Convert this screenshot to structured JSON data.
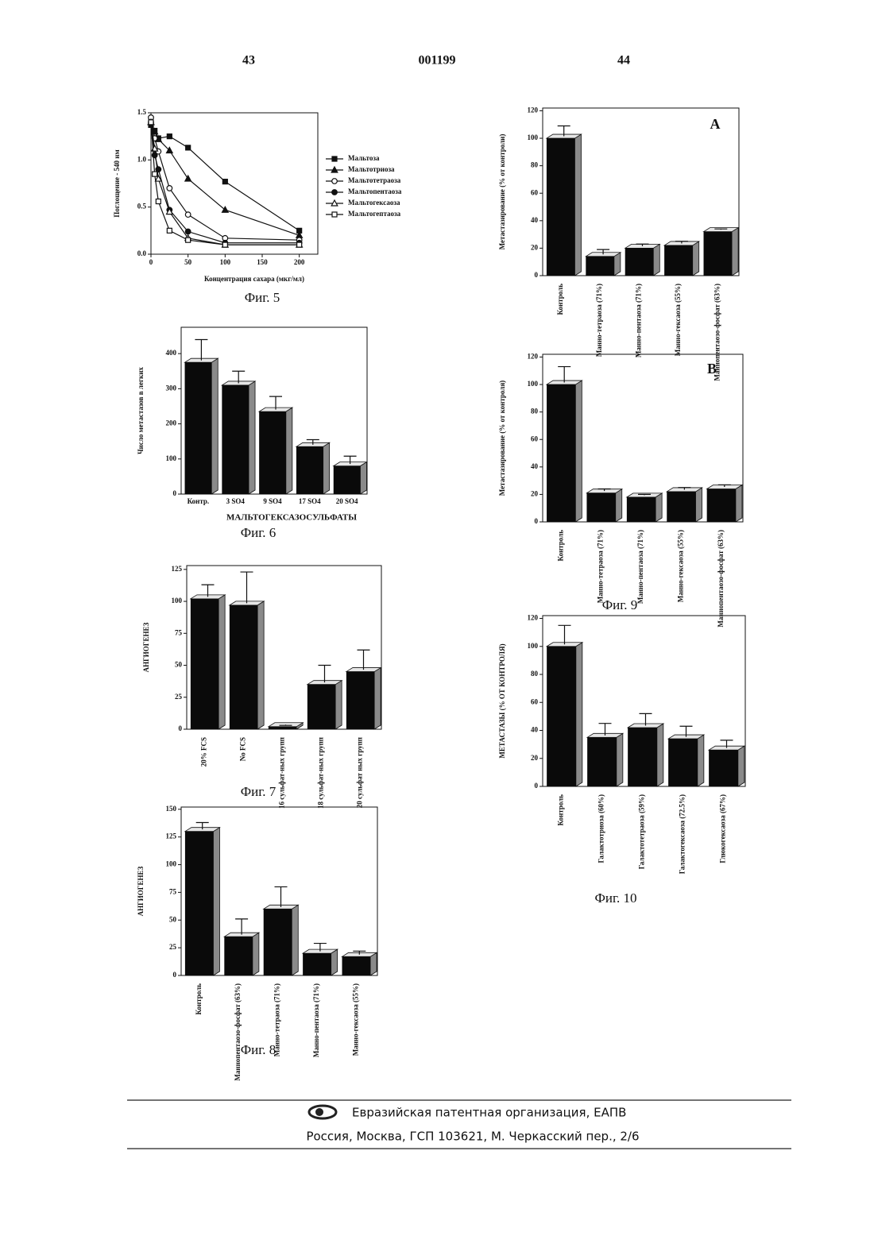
{
  "header": {
    "left": "43",
    "center": "001199",
    "right": "44"
  },
  "chart_data": [
    {
      "type": "line",
      "caption": "Фиг. 5",
      "xlabel": "Концентрация сахара (мкг/мл)",
      "ylabel": "Поглощение - 540 нм",
      "x": [
        0,
        5,
        10,
        25,
        50,
        100,
        200
      ],
      "xlim": [
        0,
        225
      ],
      "xticks": [
        0,
        50,
        100,
        150,
        200
      ],
      "ylim": [
        0,
        1.5
      ],
      "yticks": [
        {
          "value": 0,
          "label": "0.0"
        },
        0.5,
        {
          "value": 1,
          "label": "1.0"
        },
        1.5
      ],
      "series": [
        {
          "name": "Мальтоза",
          "color": "#111111",
          "marker": "square-filled",
          "values": [
            1.37,
            1.31,
            1.23,
            1.25,
            1.13,
            0.77,
            0.25
          ]
        },
        {
          "name": "Мальтотриоза",
          "color": "#111111",
          "marker": "triangle-filled",
          "values": [
            1.4,
            1.3,
            1.22,
            1.1,
            0.8,
            0.47,
            0.2
          ]
        },
        {
          "name": "Мальтотетраоза",
          "color": "#111111",
          "marker": "circle-open",
          "values": [
            1.45,
            1.23,
            1.09,
            0.7,
            0.42,
            0.17,
            0.15
          ]
        },
        {
          "name": "Мальтопентаоза",
          "color": "#111111",
          "marker": "circle-filled",
          "values": [
            1.4,
            1.05,
            0.9,
            0.47,
            0.24,
            0.12,
            0.12
          ]
        },
        {
          "name": "Мальтогексаоза",
          "color": "#111111",
          "marker": "triangle-open",
          "values": [
            1.4,
            1.12,
            0.8,
            0.45,
            0.17,
            0.1,
            0.1
          ]
        },
        {
          "name": "Мальтогептаоза",
          "color": "#111111",
          "marker": "square-open",
          "values": [
            1.4,
            0.85,
            0.56,
            0.25,
            0.15,
            0.1,
            0.1
          ]
        }
      ]
    },
    {
      "type": "bar",
      "caption": "Фиг. 6",
      "xlabel": "МАЛЬТОГЕКСАЗОСУЛЬФАТЫ",
      "ylabel": "Число метастазов в легких",
      "categories": [
        "Контр.",
        "3 SO4",
        "9 SO4",
        "17 SO4",
        "20 SO4"
      ],
      "values": [
        375,
        310,
        235,
        135,
        80
      ],
      "errors": [
        65,
        40,
        43,
        20,
        28
      ],
      "ylim": [
        0,
        475
      ],
      "yticks": [
        0,
        100,
        200,
        300,
        400
      ],
      "color": "#0a0a0a"
    },
    {
      "type": "bar",
      "caption": "Фиг. 7",
      "ylabel": "АНГИОГЕНЕЗ",
      "categories": [
        "20% FCS",
        "No FCS",
        "16 сульфат-ных групп",
        "18 сульфат-ных групп",
        "20 сульфат ных групп"
      ],
      "values": [
        102,
        97,
        2,
        35,
        45
      ],
      "errors": [
        11,
        26,
        1,
        15,
        17
      ],
      "ylim": [
        0,
        128
      ],
      "yticks": [
        0,
        25,
        50,
        75,
        100,
        125
      ],
      "color": "#0a0a0a"
    },
    {
      "type": "bar",
      "caption": "Фиг. 8",
      "ylabel": "АНГИОГЕНЕЗ",
      "categories": [
        "Контроль",
        "Маннопентаозо-фосфат (63%)",
        "Манно-тетраоза (71%)",
        "Манно-пентаоза (71%)",
        "Манно-гексаоза (55%)"
      ],
      "values": [
        130,
        35,
        60,
        20,
        17
      ],
      "errors": [
        8,
        16,
        20,
        9,
        5
      ],
      "ylim": [
        0,
        152
      ],
      "yticks": [
        0,
        25,
        50,
        75,
        100,
        125,
        150
      ],
      "color": "#0a0a0a"
    },
    {
      "type": "bar",
      "panel": "A",
      "ylabel": "Метастазирование (% от контроли)",
      "categories": [
        "Контроль",
        "Манно-тетраоза (71%)",
        "Манно-пентаоза (71%)",
        "Манно-гексаоза (55%)",
        "Маннопентаозо-фосфат (63%)"
      ],
      "values": [
        100,
        14,
        20,
        22,
        32
      ],
      "errors": [
        9,
        5,
        3,
        3,
        2
      ],
      "ylim": [
        0,
        122
      ],
      "yticks": [
        0,
        20,
        40,
        60,
        80,
        100,
        120
      ],
      "color": "#0a0a0a"
    },
    {
      "type": "bar",
      "panel": "B",
      "caption": "Фиг. 9",
      "ylabel": "Метастазирование (% от контроля)",
      "categories": [
        "Контроль",
        "Манно-тетраоза (71%)",
        "Манно-пентаоза (71%)",
        "Манно-гексаоза (55%)",
        "Маннопентаозо-фосфат (63%)"
      ],
      "values": [
        100,
        21,
        18,
        22,
        24
      ],
      "errors": [
        13,
        3,
        2,
        3,
        3
      ],
      "ylim": [
        0,
        122
      ],
      "yticks": [
        0,
        20,
        40,
        60,
        80,
        100,
        120
      ],
      "color": "#0a0a0a"
    },
    {
      "type": "bar",
      "caption": "Фиг. 10",
      "ylabel": "МЕТАСТАЗЫ (% ОТ КОНТРОЛЯ)",
      "categories": [
        "Контроль",
        "Галактотриоза (60%)",
        "Галактотетраоза (59%)",
        "Галактогексаоза (72.5%)",
        "Глюкогексаоза (67%)"
      ],
      "values": [
        100,
        35,
        42,
        34,
        26
      ],
      "errors": [
        15,
        10,
        10,
        9,
        7
      ],
      "ylim": [
        0,
        122
      ],
      "yticks": [
        0,
        20,
        40,
        60,
        80,
        100,
        120
      ],
      "color": "#0a0a0a"
    }
  ],
  "footer": {
    "org": "Евразийская патентная организация, ЕАПВ",
    "address": "Россия, Москва, ГСП 103621, М. Черкасский пер., 2/6"
  }
}
